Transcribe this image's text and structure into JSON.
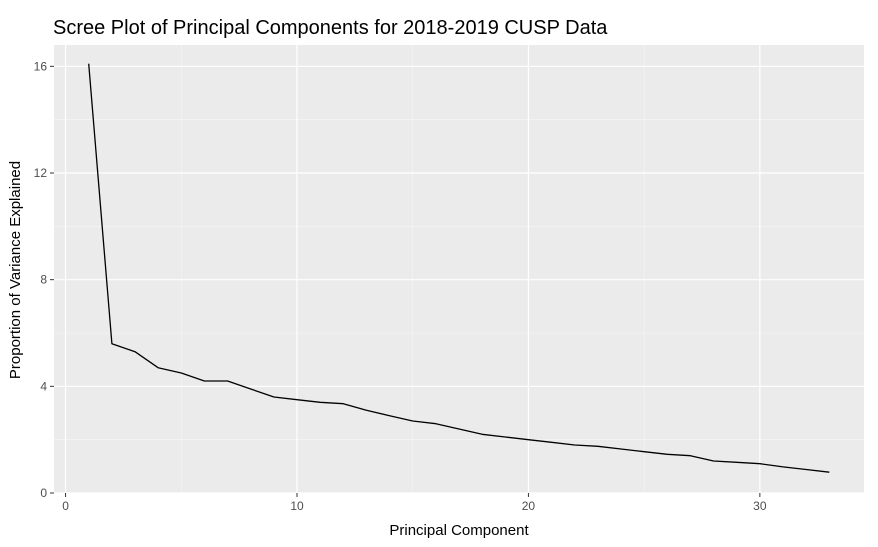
{
  "chart_data": {
    "type": "line",
    "title": "Scree Plot of Principal Components for 2018-2019 CUSP Data",
    "xlabel": "Principal Component",
    "ylabel": "Proportion of Variance Explained",
    "xlim": [
      -0.5,
      34.5
    ],
    "ylim": [
      0,
      16.8
    ],
    "x_ticks": [
      0,
      10,
      20,
      30
    ],
    "y_ticks": [
      0,
      4,
      8,
      12,
      16
    ],
    "grid": true,
    "legend": "none",
    "series": [
      {
        "x": [
          1,
          2,
          3,
          4,
          5,
          6,
          7,
          8,
          9,
          10,
          11,
          12,
          13,
          14,
          15,
          16,
          17,
          18,
          19,
          20,
          21,
          22,
          23,
          24,
          25,
          26,
          27,
          28,
          29,
          30,
          31,
          32,
          33
        ],
        "values": [
          16.1,
          5.6,
          5.3,
          4.7,
          4.5,
          4.2,
          4.2,
          3.9,
          3.6,
          3.5,
          3.4,
          3.35,
          3.1,
          2.9,
          2.7,
          2.6,
          2.4,
          2.2,
          2.1,
          2.0,
          1.9,
          1.8,
          1.75,
          1.65,
          1.55,
          1.45,
          1.4,
          1.2,
          1.15,
          1.1,
          0.98,
          0.88,
          0.78
        ],
        "color": "#000000"
      }
    ],
    "colors": {
      "panel_background": "#ebebeb",
      "grid_major": "#ffffff",
      "grid_minor": "#f5f5f5",
      "tick_text": "#4d4d4d",
      "tick_mark": "#333333"
    }
  }
}
